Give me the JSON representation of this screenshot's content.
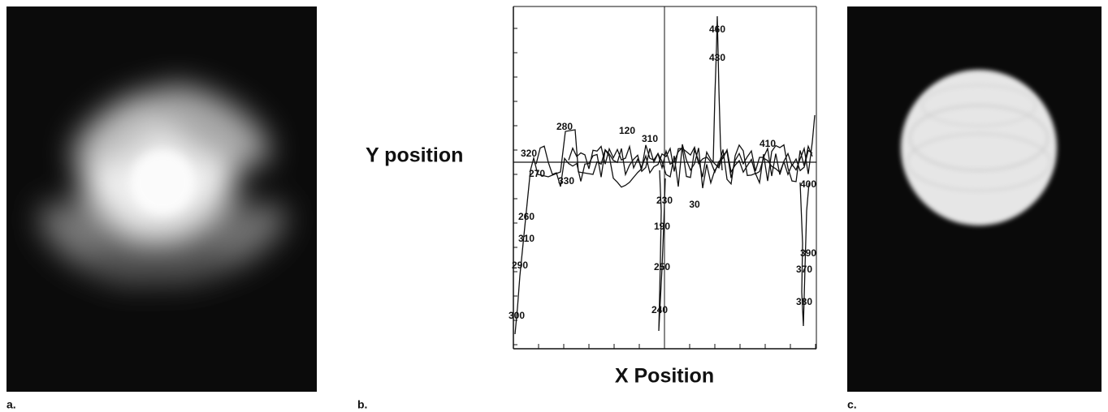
{
  "panels": [
    {
      "label": "a."
    },
    {
      "label": "b.",
      "y_label": "Y position",
      "x_label": "X Position",
      "point_labels": [
        "460",
        "430",
        "280",
        "120",
        "310",
        "320",
        "270",
        "330",
        "260",
        "310",
        "290",
        "300",
        "230",
        "190",
        "250",
        "240",
        "30",
        "410",
        "400",
        "390",
        "370",
        "380"
      ]
    },
    {
      "label": "c."
    }
  ]
}
